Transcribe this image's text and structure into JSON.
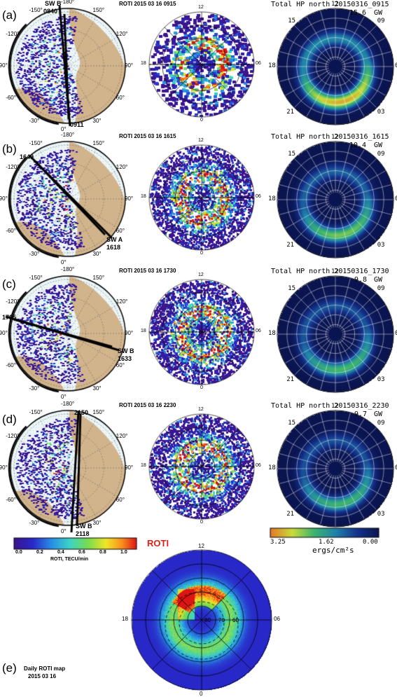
{
  "rows": [
    {
      "label": "(a)",
      "roti_title": "ROTI 2015 03 16 0915",
      "hp_title": "Total HP north 20150316_0915",
      "hp_power": "15.6",
      "hp_unit": "GW",
      "sw_label_1": "SW B",
      "sw_time_1": "0840",
      "sw_label_2": "",
      "sw_time_2": "0911"
    },
    {
      "label": "(b)",
      "roti_title": "ROTI 2015 03 16 1615",
      "hp_title": "Total HP north 20150316_1615",
      "hp_power": "10.4",
      "hp_unit": "GW",
      "sw_label_1": "1649",
      "sw_time_1": "",
      "sw_label_2": "SW A",
      "sw_time_2": "1618"
    },
    {
      "label": "(c)",
      "roti_title": "ROTI 2015 03 16 1730",
      "hp_title": "Total HP north 20150316_1730",
      "hp_power": "9.8",
      "hp_unit": "GW",
      "sw_label_1": "1705",
      "sw_time_1": "",
      "sw_label_2": "SW B",
      "sw_time_2": "1633"
    },
    {
      "label": "(d)",
      "roti_title": "ROTI 2015 03 16 2230",
      "hp_title": "Total HP north 20150316_2230",
      "hp_power": "9.7",
      "hp_unit": "GW",
      "sw_label_1": "2150",
      "sw_time_1": "",
      "sw_label_2": "SW B",
      "sw_time_2": "2118"
    }
  ],
  "geo_map": {
    "lon_labels": [
      "-180°",
      "-150°",
      "150°",
      "-120°",
      "120°",
      "-90°",
      "90°",
      "-60°",
      "60°",
      "-30°",
      "30°",
      "0°"
    ]
  },
  "mlt_labels": {
    "top": "12",
    "left": "18",
    "right": "06",
    "bottom": "0"
  },
  "hp_mlt_labels": {
    "top": "12",
    "left": "18",
    "right": "06",
    "bottom": "24",
    "ul": "15",
    "ur": "09",
    "ll": "21",
    "lr": "03"
  },
  "mlat_labels": [
    "80",
    "70",
    "60"
  ],
  "roti_colorbar": {
    "ticks": [
      "0.0",
      "0.2",
      "0.4",
      "0.6",
      "0.8",
      "1.0"
    ],
    "title": "ROTI, TECU/min",
    "big_label": "ROTI"
  },
  "hp_colorbar": {
    "ticks": [
      "3.25",
      "1.62",
      "0.00"
    ],
    "unit": "ergs/cm²s"
  },
  "daily": {
    "label": "(e)",
    "line1": "Daily ROTI map",
    "line2": "2015 03 16"
  },
  "colors": {
    "land": "#d2b48c",
    "ocean": "#ffffff",
    "roti_low": "#2a1a8c",
    "hp_bg": "#0a1a5a"
  }
}
